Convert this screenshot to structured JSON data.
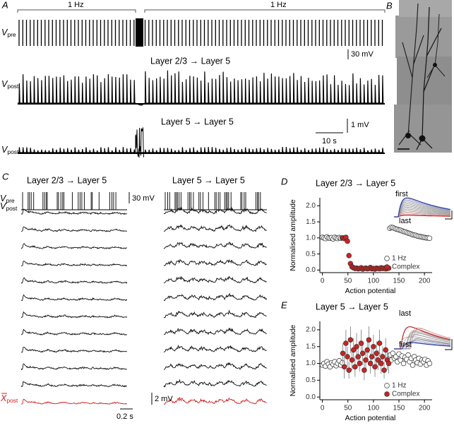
{
  "A": {
    "label": "A",
    "freq_left": "1 Hz",
    "freq_right": "1 Hz",
    "vpre_v": "V",
    "vpre_sub": "pre",
    "scale_v30": "30 mV",
    "pair1": "Layer 2/3 → Layer 5",
    "vpost1_v": "V",
    "vpost1_sub": "post",
    "scale_v1": "1 mV",
    "pair2": "Layer 5 → Layer 5",
    "vpost2_v": "V",
    "vpost2_sub": "post",
    "scale_t": "10 s"
  },
  "B": {
    "label": "B"
  },
  "C": {
    "label": "C",
    "title_left": "Layer 2/3 → Layer 5",
    "title_right": "Layer 5 → Layer 5",
    "vpre_v": "V",
    "vpre_sub": "pre",
    "scale_v30": "30 mV",
    "vpost_v": "V",
    "vpost_sub": "post",
    "mean_x": "X",
    "mean_sub": "post",
    "scale_v2": "2 mV",
    "scale_t": "0.2 s"
  },
  "D": {
    "label": "D",
    "type": "scatter",
    "title": "Layer 2/3 → Layer 5",
    "ylabel": "Normalised amplitude",
    "xlabel": "Action potential",
    "inset_first": "first",
    "inset_last": "last",
    "xlim": [
      -5,
      215
    ],
    "ylim": [
      -0.08,
      2.25
    ],
    "xticks": [
      0,
      50,
      100,
      150,
      200
    ],
    "yticks": [
      {
        "value": 0,
        "label": "0.0"
      },
      {
        "value": 0.5,
        "label": "0.5"
      },
      {
        "value": 1,
        "label": "1.0"
      },
      {
        "value": 1.5,
        "label": "1.5"
      },
      {
        "value": 2,
        "label": "2.0"
      }
    ],
    "series": [
      {
        "name": "1 Hz",
        "color": "#ffffff",
        "x": [
          0,
          3,
          6,
          9,
          12,
          15,
          18,
          21,
          24,
          27,
          30,
          33,
          36,
          39,
          132,
          135,
          138,
          141,
          144,
          147,
          150,
          153,
          156,
          159,
          162,
          165,
          168,
          171,
          174,
          177,
          180,
          183,
          186,
          189,
          192,
          195,
          198,
          201,
          204,
          207,
          210
        ],
        "y": [
          1.02,
          1.0,
          0.98,
          1.03,
          1.0,
          0.99,
          1.01,
          0.97,
          1.02,
          1.0,
          0.98,
          1.01,
          0.99,
          1.0,
          1.3,
          1.33,
          1.32,
          1.3,
          1.28,
          1.27,
          1.25,
          1.24,
          1.22,
          1.2,
          1.19,
          1.17,
          1.15,
          1.14,
          1.12,
          1.1,
          1.09,
          1.08,
          1.06,
          1.05,
          1.04,
          1.03,
          1.02,
          1.01,
          1.0,
          1.0,
          0.99
        ]
      },
      {
        "name": "Complex",
        "color": "#cc2222",
        "x": [
          40,
          43,
          46,
          49,
          52,
          55,
          58,
          61,
          64,
          67,
          70,
          73,
          76,
          79,
          82,
          85,
          88,
          91,
          94,
          97,
          100,
          103,
          106,
          109,
          112,
          115,
          118,
          121,
          124,
          127,
          130
        ],
        "y": [
          1.0,
          0.98,
          1.02,
          0.9,
          0.45,
          0.2,
          0.1,
          0.07,
          0.05,
          0.06,
          0.04,
          0.05,
          0.07,
          0.03,
          0.05,
          0.06,
          0.04,
          0.05,
          0.08,
          0.04,
          0.05,
          0.03,
          0.06,
          0.05,
          0.04,
          0.07,
          0.05,
          0.06,
          0.04,
          0.05,
          0.06
        ]
      }
    ]
  },
  "E": {
    "label": "E",
    "type": "scatter",
    "title": "Layer 5 → Layer 5",
    "ylabel": "Normalised amplitude",
    "xlabel": "Action potential",
    "inset_first": "first",
    "inset_last": "last",
    "xlim": [
      -5,
      215
    ],
    "ylim": [
      -0.08,
      2.25
    ],
    "xticks": [
      0,
      50,
      100,
      150,
      200
    ],
    "yticks": [
      {
        "value": 0,
        "label": "0.0"
      },
      {
        "value": 0.5,
        "label": "0.5"
      },
      {
        "value": 1,
        "label": "1.0"
      },
      {
        "value": 1.5,
        "label": "1.5"
      },
      {
        "value": 2,
        "label": "2.0"
      }
    ],
    "series": [
      {
        "name": "1 Hz",
        "color": "#ffffff",
        "x": [
          0,
          3,
          6,
          9,
          12,
          15,
          18,
          21,
          24,
          27,
          30,
          33,
          36,
          39,
          132,
          135,
          138,
          141,
          144,
          147,
          150,
          153,
          156,
          159,
          162,
          165,
          168,
          171,
          174,
          177,
          180,
          183,
          186,
          189,
          192,
          195,
          198,
          201,
          204,
          207,
          210
        ],
        "y": [
          0.95,
          1.0,
          0.92,
          1.05,
          0.98,
          0.9,
          1.02,
          0.97,
          1.05,
          0.93,
          1.0,
          1.08,
          0.95,
          1.02,
          1.25,
          1.1,
          1.3,
          1.15,
          1.2,
          1.05,
          1.28,
          1.1,
          1.22,
          1.0,
          1.18,
          1.12,
          1.25,
          1.05,
          1.15,
          0.95,
          1.2,
          1.1,
          1.02,
          1.15,
          0.98,
          1.1,
          1.05,
          1.12,
          0.95,
          1.08,
          1.0
        ]
      },
      {
        "name": "Complex",
        "color": "#cc2222",
        "x": [
          40,
          43,
          46,
          49,
          52,
          55,
          58,
          61,
          64,
          67,
          70,
          73,
          76,
          79,
          82,
          85,
          88,
          91,
          94,
          97,
          100,
          103,
          106,
          109,
          112,
          115,
          118,
          121,
          124,
          127,
          130
        ],
        "y": [
          1.3,
          0.9,
          1.6,
          1.2,
          0.8,
          1.7,
          1.1,
          1.4,
          0.9,
          1.5,
          1.2,
          1.0,
          1.6,
          1.3,
          0.8,
          1.1,
          1.4,
          1.7,
          1.0,
          1.2,
          1.5,
          0.9,
          1.3,
          1.1,
          1.6,
          1.0,
          1.2,
          0.8,
          1.4,
          1.1,
          1.0
        ],
        "err": [
          0.3,
          0.35,
          0.4,
          0.3,
          0.25,
          0.4,
          0.3,
          0.35,
          0.3,
          0.4,
          0.3,
          0.25,
          0.4,
          0.35,
          0.3,
          0.3,
          0.35,
          0.4,
          0.3,
          0.3,
          0.35,
          0.3,
          0.35,
          0.3,
          0.4,
          0.3,
          0.3,
          0.25,
          0.35,
          0.3,
          0.3
        ]
      }
    ]
  }
}
